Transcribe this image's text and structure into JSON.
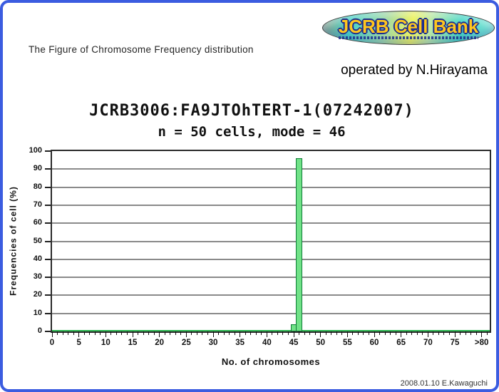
{
  "page": {
    "heading": "The Figure of Chromosome Frequency distribution",
    "operated_by": "operated by N.Hirayama",
    "credit": "2008.01.10 E.Kawaguchi",
    "border_color": "#3b5ce0",
    "background": "#ffffff"
  },
  "logo": {
    "text": "JCRB Cell Bank",
    "text_color": "#ffc61e",
    "outline_color": "#1d2d8f"
  },
  "chart_data": {
    "type": "bar",
    "title": "JCRB3006:FA9JTOhTERT-1(07242007)",
    "subtitle": "n = 50 cells, mode = 46",
    "n_cells": 50,
    "mode": 46,
    "xlabel": "No. of chromosomes",
    "ylabel": "Frequencies of cell (%)",
    "ylim": [
      0,
      100
    ],
    "yticks": [
      0,
      10,
      20,
      30,
      40,
      50,
      60,
      70,
      80,
      90,
      100
    ],
    "xticks": [
      {
        "value": 0,
        "label": "0"
      },
      {
        "value": 5,
        "label": "5"
      },
      {
        "value": 10,
        "label": "10"
      },
      {
        "value": 15,
        "label": "15"
      },
      {
        "value": 20,
        "label": "20"
      },
      {
        "value": 25,
        "label": "25"
      },
      {
        "value": 30,
        "label": "30"
      },
      {
        "value": 35,
        "label": "35"
      },
      {
        "value": 40,
        "label": "40"
      },
      {
        "value": 45,
        "label": "45"
      },
      {
        "value": 50,
        "label": "50"
      },
      {
        "value": 55,
        "label": "55"
      },
      {
        "value": 60,
        "label": "60"
      },
      {
        "value": 65,
        "label": "65"
      },
      {
        "value": 70,
        "label": "70"
      },
      {
        "value": 75,
        "label": "75"
      },
      {
        "value": 80,
        "label": ">80"
      }
    ],
    "minor_tick_every": 1,
    "x_bin_count": 81,
    "grid": true,
    "legend": "none",
    "bars": [
      {
        "x": 45,
        "percent": 4
      },
      {
        "x": 46,
        "percent": 96
      }
    ],
    "colors": {
      "bar_fill": "#70e287",
      "bar_border": "#0e7c37",
      "baseline": "#2ab54f",
      "grid": "#8a8a8a",
      "axis": "#2b2b2b"
    }
  }
}
